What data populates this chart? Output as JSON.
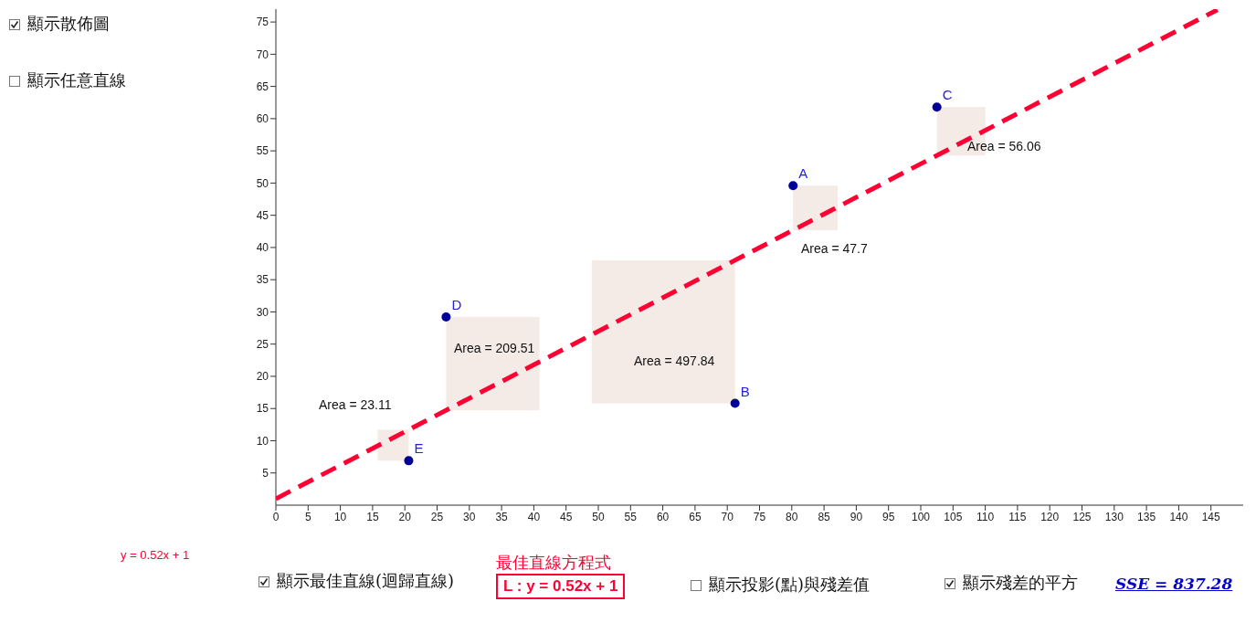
{
  "chart_data": {
    "type": "scatter",
    "xlim": [
      0,
      150
    ],
    "ylim": [
      0,
      77
    ],
    "xticks": [
      0,
      5,
      10,
      15,
      20,
      25,
      30,
      35,
      40,
      45,
      50,
      55,
      60,
      65,
      70,
      75,
      80,
      85,
      90,
      95,
      100,
      105,
      110,
      115,
      120,
      125,
      130,
      135,
      140,
      145
    ],
    "yticks": [
      5,
      10,
      15,
      20,
      25,
      30,
      35,
      40,
      45,
      50,
      55,
      60,
      65,
      70,
      75
    ],
    "grid": false,
    "legend": false,
    "series": [
      {
        "color": "#000099",
        "marker": "circle",
        "x": [
          80.2,
          71.2,
          102.5,
          26.4,
          20.6
        ],
        "values": [
          49.6,
          15.8,
          61.8,
          29.2,
          6.9
        ]
      },
      {
        "type": "line",
        "color": "#ff0033",
        "line_style": "dashed",
        "marker": "none",
        "x": [
          0,
          146
        ],
        "values": [
          1,
          76.9
        ]
      }
    ],
    "annotations": [
      "顯示散佈圖",
      "顯示任意直線",
      "y = 0.52x + 1",
      "顯示最佳直線(迴歸直線)",
      "最佳直線方程式",
      "L : y = 0.52x + 1",
      "顯示投影(點)與殘差值",
      "顯示殘差的平方",
      "SSE = 837.28",
      {
        "text": "A",
        "x": 80.2,
        "y": 49.6
      },
      {
        "text": "B",
        "x": 71.2,
        "y": 15.8
      },
      {
        "text": "C",
        "x": 102.5,
        "y": 61.8
      },
      {
        "text": "D",
        "x": 26.4,
        "y": 29.2
      },
      {
        "text": "E",
        "x": 20.6,
        "y": 6.9
      },
      "Area = 23.11",
      "Area = 209.51",
      "Area = 497.84",
      "Area = 47.7",
      "Area = 56.06"
    ]
  }
}
